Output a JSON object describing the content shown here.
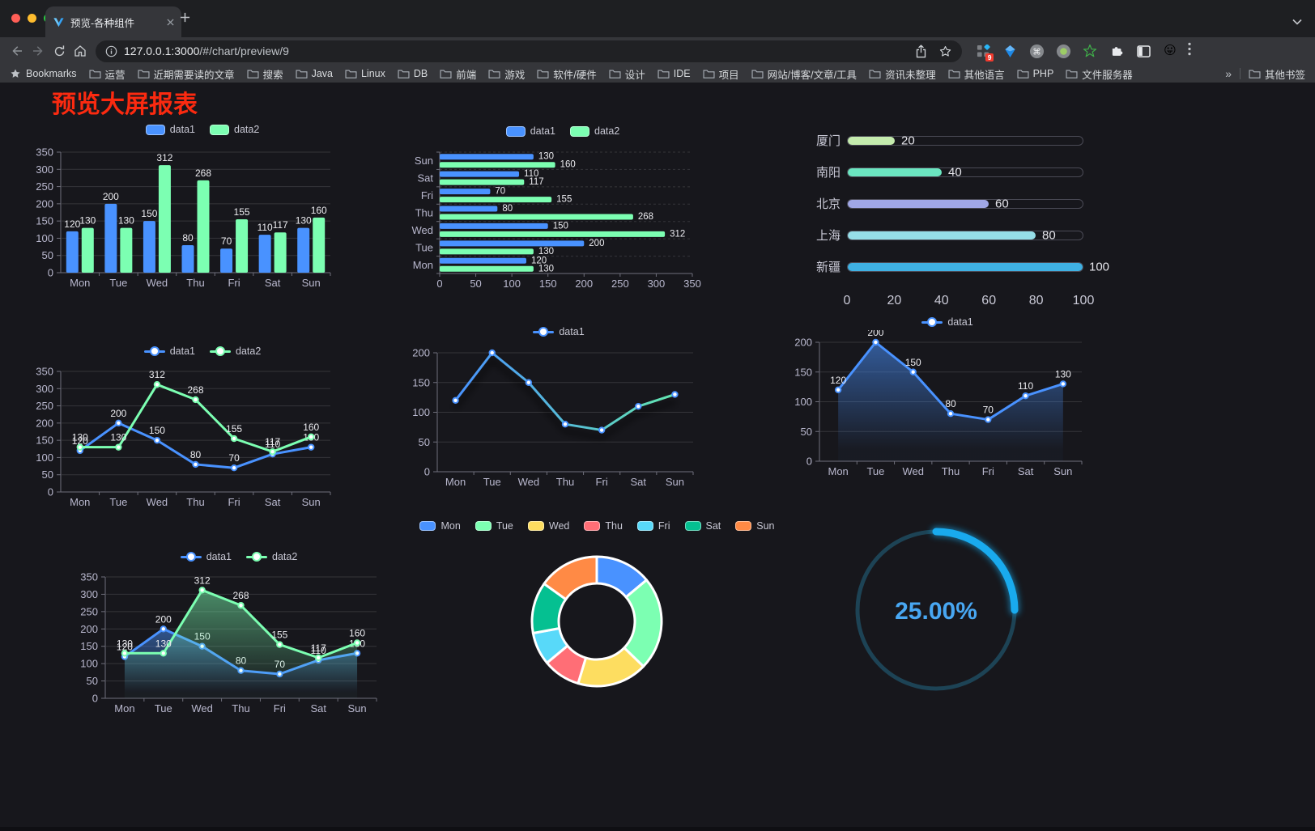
{
  "browser": {
    "tab_title": "预览-各种组件",
    "url_host": "127.0.0.1:3000",
    "url_path": "/#/chart/preview/9",
    "bookmarks_label": "Bookmarks",
    "bookmarks": [
      "运营",
      "近期需要读的文章",
      "搜索",
      "Java",
      "Linux",
      "DB",
      "前端",
      "游戏",
      "软件/硬件",
      "设计",
      "IDE",
      "项目",
      "网站/博客/文章/工具",
      "资讯未整理",
      "其他语言",
      "PHP",
      "文件服务器"
    ],
    "overflow_chevron": "»",
    "other_bookmarks": "其他书签",
    "extension_badge": "9"
  },
  "page": {
    "title": "预览大屏报表",
    "title_color": "#fb2a10",
    "background": "#17171c"
  },
  "chart_data": [
    {
      "id": "grouped-bar",
      "type": "bar",
      "categories": [
        "Mon",
        "Tue",
        "Wed",
        "Thu",
        "Fri",
        "Sat",
        "Sun"
      ],
      "series": [
        {
          "name": "data1",
          "color": "#4992ff",
          "values": [
            120,
            200,
            150,
            80,
            70,
            110,
            130
          ]
        },
        {
          "name": "data2",
          "color": "#7cffb2",
          "values": [
            130,
            130,
            312,
            268,
            155,
            117,
            160
          ]
        }
      ],
      "ylim": [
        0,
        350
      ],
      "ystep": 50,
      "legend_position": "top",
      "labels": true
    },
    {
      "id": "horizontal-bar",
      "type": "bar",
      "orientation": "horizontal",
      "categories": [
        "Mon",
        "Tue",
        "Wed",
        "Thu",
        "Fri",
        "Sat",
        "Sun"
      ],
      "series": [
        {
          "name": "data1",
          "color": "#4992ff",
          "values": [
            120,
            200,
            150,
            80,
            70,
            110,
            130
          ]
        },
        {
          "name": "data2",
          "color": "#7cffb2",
          "values": [
            130,
            130,
            312,
            268,
            155,
            117,
            160
          ]
        }
      ],
      "xlim": [
        0,
        350
      ],
      "xstep": 50,
      "legend_position": "top",
      "labels": true
    },
    {
      "id": "city-progress",
      "type": "bar",
      "orientation": "horizontal",
      "style": "progress",
      "categories": [
        "厦门",
        "南阳",
        "北京",
        "上海",
        "新疆"
      ],
      "values": [
        20,
        40,
        60,
        80,
        100
      ],
      "colors": [
        "#c4ebad",
        "#6be6c1",
        "#a0a7e6",
        "#96dee8",
        "#3fb1e3"
      ],
      "xlim": [
        0,
        100
      ],
      "xticks": [
        0,
        20,
        40,
        60,
        80,
        100
      ]
    },
    {
      "id": "two-line",
      "type": "line",
      "categories": [
        "Mon",
        "Tue",
        "Wed",
        "Thu",
        "Fri",
        "Sat",
        "Sun"
      ],
      "series": [
        {
          "name": "data1",
          "color": "#4992ff",
          "values": [
            120,
            200,
            150,
            80,
            70,
            110,
            130
          ]
        },
        {
          "name": "data2",
          "color": "#7cffb2",
          "values": [
            130,
            130,
            312,
            268,
            155,
            117,
            160
          ]
        }
      ],
      "ylim": [
        0,
        350
      ],
      "ystep": 50,
      "labels": true
    },
    {
      "id": "gradient-line",
      "type": "line",
      "categories": [
        "Mon",
        "Tue",
        "Wed",
        "Thu",
        "Fri",
        "Sat",
        "Sun"
      ],
      "series": [
        {
          "name": "data1",
          "color": "#4992ff",
          "gradient": [
            "#4992ff",
            "#63e6b0"
          ],
          "values": [
            120,
            200,
            150,
            80,
            70,
            110,
            130
          ]
        }
      ],
      "ylim": [
        0,
        200
      ],
      "ystep": 50,
      "labels": false,
      "shadow": true
    },
    {
      "id": "area-line",
      "type": "area",
      "categories": [
        "Mon",
        "Tue",
        "Wed",
        "Thu",
        "Fri",
        "Sat",
        "Sun"
      ],
      "series": [
        {
          "name": "data1",
          "color": "#4992ff",
          "values": [
            120,
            200,
            150,
            80,
            70,
            110,
            130
          ]
        }
      ],
      "ylim": [
        0,
        200
      ],
      "ystep": 50,
      "labels": true
    },
    {
      "id": "two-area",
      "type": "area",
      "categories": [
        "Mon",
        "Tue",
        "Wed",
        "Thu",
        "Fri",
        "Sat",
        "Sun"
      ],
      "series": [
        {
          "name": "data1",
          "color": "#4992ff",
          "values": [
            120,
            200,
            150,
            80,
            70,
            110,
            130
          ]
        },
        {
          "name": "data2",
          "color": "#7cffb2",
          "values": [
            130,
            130,
            312,
            268,
            155,
            117,
            160
          ]
        }
      ],
      "ylim": [
        0,
        350
      ],
      "ystep": 50,
      "labels": true
    },
    {
      "id": "donut",
      "type": "pie",
      "categories": [
        "Mon",
        "Tue",
        "Wed",
        "Thu",
        "Fri",
        "Sat",
        "Sun"
      ],
      "values": [
        120,
        200,
        150,
        80,
        70,
        110,
        130
      ],
      "colors": [
        "#4992ff",
        "#7cffb2",
        "#fddd60",
        "#ff6e76",
        "#58d9f9",
        "#05c091",
        "#ff8a45"
      ],
      "border_color": "#ffffff",
      "legend_position": "top"
    },
    {
      "id": "gauge",
      "type": "gauge",
      "value": 25,
      "display": "25.00%",
      "progress_color": "#19aaee",
      "track_color": "#1d4355",
      "text_color": "#48a7f2"
    }
  ]
}
